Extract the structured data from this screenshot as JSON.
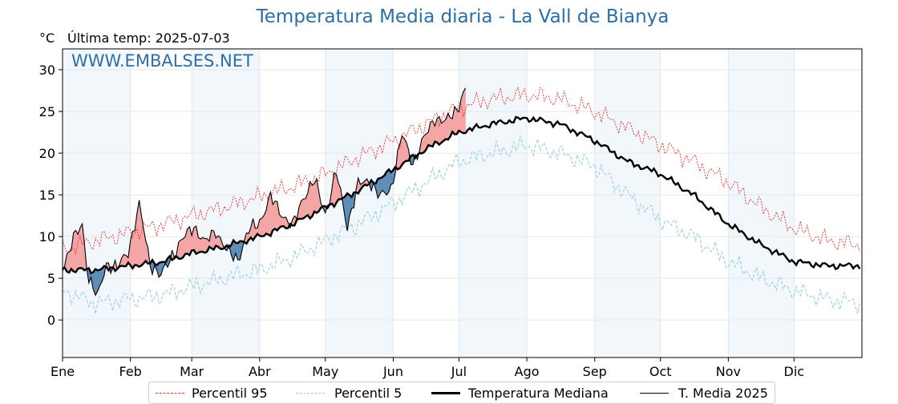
{
  "chart_data": {
    "type": "line",
    "title": "Temperatura Media diaria - La Vall de Bianya",
    "unit_label": "°C",
    "last_temp_label": "Última temp: 2025-07-03",
    "watermark": "WWW.EMBALSES.NET",
    "ylim": [
      -4.5,
      32.5
    ],
    "xlim": [
      0,
      365
    ],
    "yticks": [
      0,
      5,
      10,
      15,
      20,
      25,
      30
    ],
    "month_labels": [
      "Ene",
      "Feb",
      "Mar",
      "Abr",
      "May",
      "Jun",
      "Jul",
      "Ago",
      "Sep",
      "Oct",
      "Nov",
      "Dic"
    ],
    "month_days": [
      0,
      31,
      59,
      90,
      120,
      151,
      181,
      212,
      243,
      273,
      304,
      334
    ],
    "grid": true,
    "legend_position": "bottom",
    "colors": {
      "p95": "#e8302a",
      "p5": "#9fd3e0",
      "median": "#000000",
      "current": "#000000",
      "above_fill": "#f4a6a6",
      "below_fill": "#5e8fb8",
      "shade": "#f2f7fc",
      "accent": "#2c6fa6"
    },
    "x_day_of_year": [
      0,
      15,
      31,
      46,
      59,
      74,
      90,
      105,
      120,
      135,
      151,
      166,
      181,
      196,
      212,
      227,
      243,
      258,
      273,
      288,
      304,
      319,
      334,
      349,
      364
    ],
    "series": [
      {
        "name": "Percentil 95",
        "key": "p95",
        "values": [
          8.5,
          9.5,
          10.5,
          11.5,
          12.5,
          13.5,
          14.8,
          16.0,
          17.5,
          19.5,
          21.5,
          23.5,
          25.5,
          26.5,
          27.0,
          26.5,
          25.0,
          23.0,
          21.0,
          19.0,
          16.5,
          13.5,
          11.0,
          9.5,
          9.0
        ]
      },
      {
        "name": "Percentil 5",
        "key": "p5",
        "values": [
          3.5,
          2.0,
          2.5,
          3.0,
          4.0,
          5.0,
          6.0,
          7.5,
          9.5,
          11.5,
          14.0,
          16.5,
          19.0,
          20.0,
          21.0,
          20.0,
          18.5,
          15.0,
          12.0,
          10.0,
          7.0,
          5.0,
          3.5,
          2.5,
          2.0
        ]
      },
      {
        "name": "Temperatura Mediana",
        "key": "median",
        "values": [
          6.0,
          6.0,
          6.5,
          7.0,
          8.0,
          8.8,
          10.0,
          11.5,
          13.5,
          15.5,
          18.0,
          20.5,
          22.5,
          23.5,
          24.2,
          23.5,
          21.5,
          19.0,
          17.5,
          15.0,
          11.5,
          9.0,
          7.0,
          6.5,
          6.5
        ]
      }
    ],
    "current_year": {
      "name": "T. Media 2025",
      "x": [
        0,
        5,
        9,
        12,
        16,
        20,
        25,
        30,
        35,
        40,
        45,
        50,
        55,
        60,
        65,
        70,
        75,
        80,
        85,
        90,
        95,
        100,
        105,
        110,
        115,
        120,
        125,
        130,
        135,
        140,
        145,
        150,
        155,
        160,
        165,
        170,
        175,
        181,
        184
      ],
      "values": [
        6.5,
        9.5,
        11.5,
        5.0,
        2.5,
        7.0,
        6.0,
        8.5,
        13.5,
        7.0,
        5.0,
        8.0,
        9.5,
        11.5,
        9.0,
        11.0,
        8.0,
        7.5,
        10.5,
        12.0,
        14.5,
        13.0,
        11.0,
        15.0,
        16.5,
        13.0,
        17.5,
        11.5,
        16.0,
        17.0,
        14.5,
        16.0,
        22.0,
        19.0,
        21.5,
        24.5,
        23.5,
        26.0,
        27.5
      ]
    },
    "legend": [
      "Percentil 95",
      "Percentil 5",
      "Temperatura Mediana",
      "T. Media 2025"
    ]
  }
}
